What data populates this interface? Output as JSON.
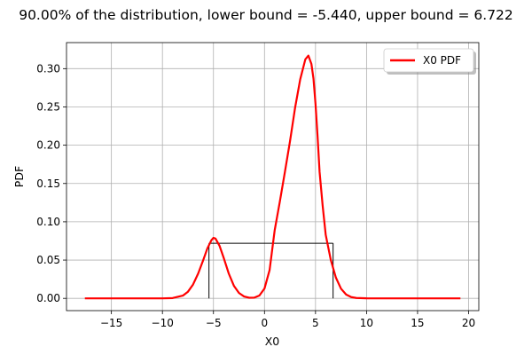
{
  "chart_data": {
    "type": "line",
    "title": "90.00% of the distribution, lower bound = -5.440, upper bound = 6.722",
    "xlabel": "X0",
    "ylabel": "PDF",
    "xlim": [
      -19.4,
      21.0
    ],
    "ylim": [
      -0.016,
      0.334
    ],
    "x_ticks": [
      -15,
      -10,
      -5,
      0,
      5,
      10,
      15,
      20
    ],
    "x_tick_labels": [
      "−15",
      "−10",
      "−5",
      "0",
      "5",
      "10",
      "15",
      "20"
    ],
    "y_ticks": [
      0.0,
      0.05,
      0.1,
      0.15,
      0.2,
      0.25,
      0.3
    ],
    "y_tick_labels": [
      "0.00",
      "0.05",
      "0.10",
      "0.15",
      "0.20",
      "0.25",
      "0.30"
    ],
    "grid": true,
    "legend_position": "top-right",
    "series": [
      {
        "name": "X0 PDF",
        "color": "#ff0000",
        "x": [
          -17.6,
          -16,
          -14,
          -12,
          -10,
          -9,
          -8,
          -7.5,
          -7,
          -6.5,
          -6,
          -5.6,
          -5.2,
          -5,
          -4.8,
          -4.4,
          -4,
          -3.5,
          -3,
          -2.5,
          -2,
          -1.5,
          -1,
          -0.5,
          0,
          0.5,
          1,
          1.5,
          2,
          2.5,
          3,
          3.5,
          4,
          4.3,
          4.6,
          4.8,
          5,
          5.2,
          5.4,
          5.7,
          6,
          6.5,
          7,
          7.5,
          8,
          8.5,
          9,
          10,
          12,
          14,
          16,
          19.2
        ],
        "y": [
          0,
          0,
          0,
          0,
          0,
          0.0004,
          0.0036,
          0.0087,
          0.0181,
          0.0324,
          0.0501,
          0.0652,
          0.076,
          0.079,
          0.0781,
          0.0685,
          0.0531,
          0.0324,
          0.0165,
          0.007,
          0.0025,
          0.0008,
          0.0009,
          0.0037,
          0.0128,
          0.0369,
          0.089,
          0.126,
          0.165,
          0.2052,
          0.249,
          0.286,
          0.312,
          0.317,
          0.306,
          0.287,
          0.254,
          0.212,
          0.165,
          0.121,
          0.083,
          0.05,
          0.027,
          0.0126,
          0.005,
          0.0017,
          0.0005,
          0.0001,
          0,
          0,
          0,
          0
        ]
      }
    ],
    "interval": {
      "lower": -5.44,
      "upper": 6.722,
      "level": 0.072,
      "color": "#000000"
    }
  }
}
